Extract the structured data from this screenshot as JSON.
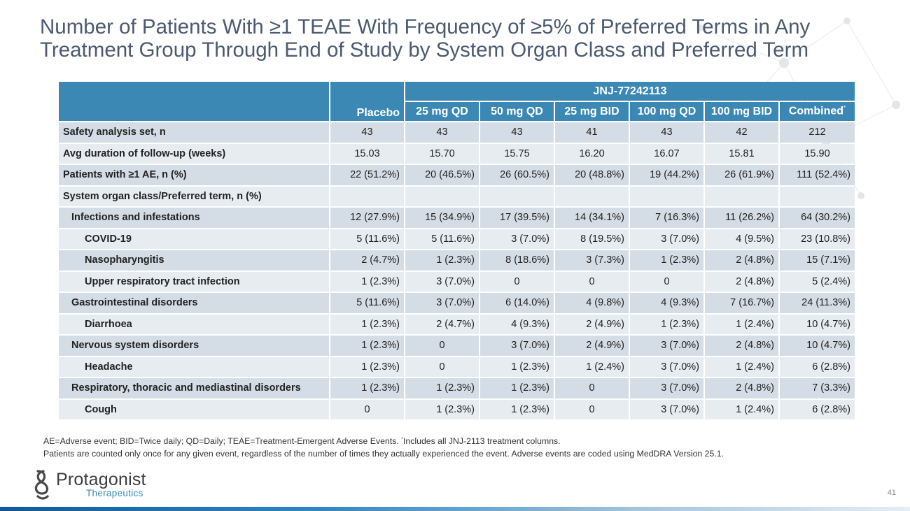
{
  "slide": {
    "title": "Number of Patients With ≥1 TEAE With Frequency of ≥5% of Preferred Terms in Any Treatment Group Through End of Study by System Organ Class and Preferred Term",
    "page_number": "41"
  },
  "table": {
    "group_header": "JNJ-77242113",
    "columns": {
      "placebo": "Placebo",
      "c1": "25 mg QD",
      "c2": "50 mg QD",
      "c3": "25 mg BID",
      "c4": "100 mg QD",
      "c5": "100 mg BID",
      "c6": "Combined",
      "c6_mark": "*"
    },
    "rows": [
      {
        "label": "Safety analysis set, n",
        "values": [
          "43",
          "43",
          "43",
          "41",
          "43",
          "42",
          "212"
        ]
      },
      {
        "label": "Avg duration of follow-up (weeks)",
        "values": [
          "15.03",
          "15.70",
          "15.75",
          "16.20",
          "16.07",
          "15.81",
          "15.90"
        ]
      },
      {
        "label": "Patients with ≥1 AE, n (%)",
        "values": [
          "22 (51.2%)",
          "20 (46.5%)",
          "26 (60.5%)",
          "20 (48.8%)",
          "19 (44.2%)",
          "26 (61.9%)",
          "111 (52.4%)"
        ]
      },
      {
        "label": "System organ class/Preferred term, n (%)",
        "values": [
          "",
          "",
          "",
          "",
          "",
          "",
          ""
        ]
      },
      {
        "label": "Infections and infestations",
        "values": [
          "12 (27.9%)",
          "15 (34.9%)",
          "17 (39.5%)",
          "14 (34.1%)",
          "7 (16.3%)",
          "11 (26.2%)",
          "64 (30.2%)"
        ]
      },
      {
        "label": "COVID-19",
        "values": [
          "5 (11.6%)",
          "5 (11.6%)",
          "3 (7.0%)",
          "8 (19.5%)",
          "3 (7.0%)",
          "4 (9.5%)",
          "23 (10.8%)"
        ]
      },
      {
        "label": "Nasopharyngitis",
        "values": [
          "2 (4.7%)",
          "1 (2.3%)",
          "8 (18.6%)",
          "3 (7.3%)",
          "1 (2.3%)",
          "2 (4.8%)",
          "15 (7.1%)"
        ]
      },
      {
        "label": "Upper respiratory tract infection",
        "values": [
          "1 (2.3%)",
          "3 (7.0%)",
          "0",
          "0",
          "0",
          "2 (4.8%)",
          "5 (2.4%)"
        ]
      },
      {
        "label": "Gastrointestinal disorders",
        "values": [
          "5 (11.6%)",
          "3 (7.0%)",
          "6 (14.0%)",
          "4 (9.8%)",
          "4 (9.3%)",
          "7 (16.7%)",
          "24 (11.3%)"
        ]
      },
      {
        "label": "Diarrhoea",
        "values": [
          "1 (2.3%)",
          "2 (4.7%)",
          "4 (9.3%)",
          "2 (4.9%)",
          "1 (2.3%)",
          "1 (2.4%)",
          "10 (4.7%)"
        ]
      },
      {
        "label": "Nervous system disorders",
        "values": [
          "1 (2.3%)",
          "0",
          "3 (7.0%)",
          "2 (4.9%)",
          "3 (7.0%)",
          "2 (4.8%)",
          "10 (4.7%)"
        ]
      },
      {
        "label": "Headache",
        "values": [
          "1 (2.3%)",
          "0",
          "1 (2.3%)",
          "1 (2.4%)",
          "3 (7.0%)",
          "1 (2.4%)",
          "6 (2.8%)"
        ]
      },
      {
        "label": "Respiratory, thoracic and mediastinal disorders",
        "values": [
          "1 (2.3%)",
          "1 (2.3%)",
          "1 (2.3%)",
          "0",
          "3 (7.0%)",
          "2 (4.8%)",
          "7 (3.3%)"
        ]
      },
      {
        "label": "Cough",
        "values": [
          "0",
          "1 (2.3%)",
          "1 (2.3%)",
          "0",
          "3 (7.0%)",
          "1 (2.4%)",
          "6 (2.8%)"
        ]
      }
    ]
  },
  "footnotes": {
    "line1_a": "AE=Adverse event; BID=Twice daily; QD=Daily; TEAE=Treatment-Emergent Adverse Events. ",
    "line1_mark": "*",
    "line1_b": "Includes all JNJ-2113 treatment columns.",
    "line2": "Patients are counted only once for any given event, regardless of the number of times they actually experienced the event. Adverse events are coded using MedDRA Version 25.1."
  },
  "logo": {
    "name": "Protagonist",
    "subtitle": "Therapeutics"
  },
  "colors": {
    "header": "#3b88b5",
    "title": "#4b5a70",
    "row_dark": "#d4dde6",
    "row_light": "#e7ecf1"
  }
}
